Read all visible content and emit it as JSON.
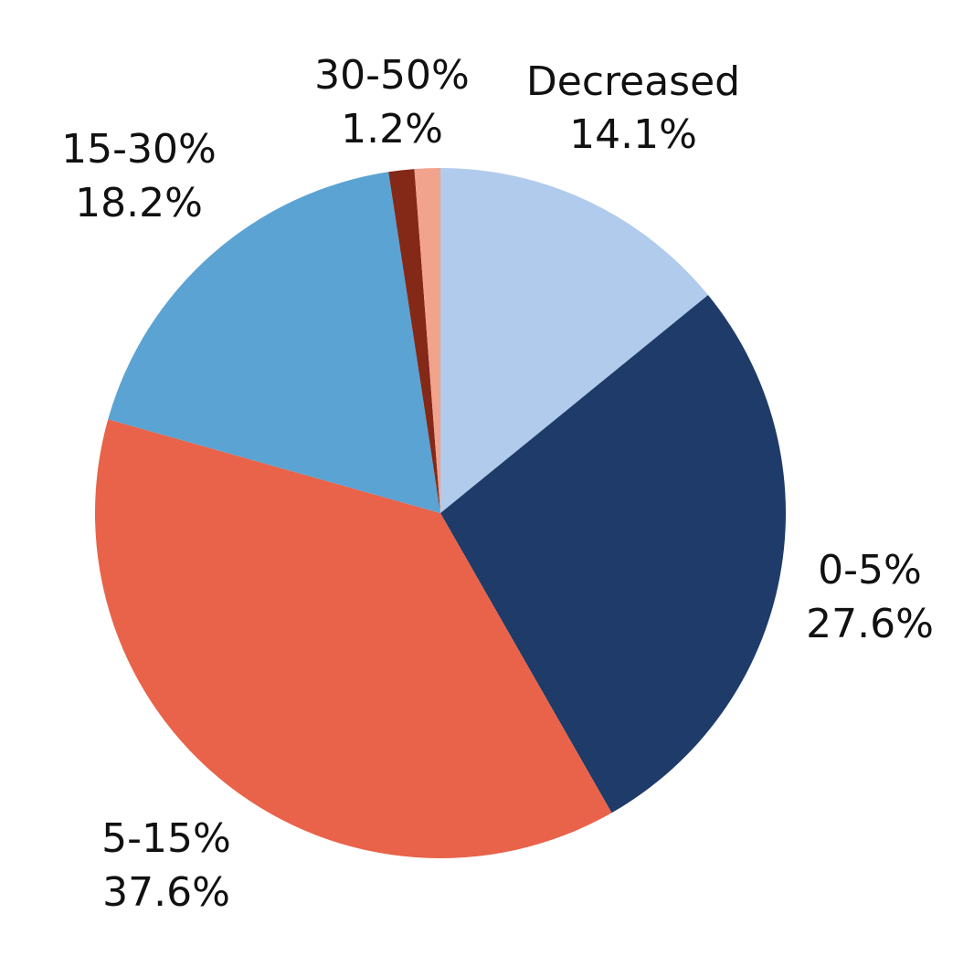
{
  "chart_data": {
    "type": "pie",
    "start_angle_deg": 0,
    "direction": "clockwise",
    "slices": [
      {
        "category": "Decreased",
        "value": 14.1,
        "label": "14.1%",
        "color": "#b0cbeb"
      },
      {
        "category": "0-5%",
        "value": 27.6,
        "label": "27.6%",
        "color": "#1f3b69"
      },
      {
        "category": "5-15%",
        "value": 37.6,
        "label": "37.6%",
        "color": "#e86349"
      },
      {
        "category": "15-30%",
        "value": 18.2,
        "label": "18.2%",
        "color": "#5ba3d2"
      },
      {
        "category": "30-50%",
        "value": 1.2,
        "label": "1.2%",
        "color": "#842818"
      },
      {
        "category": "",
        "value": 1.2,
        "label": "",
        "color": "#f2a38d"
      }
    ]
  }
}
